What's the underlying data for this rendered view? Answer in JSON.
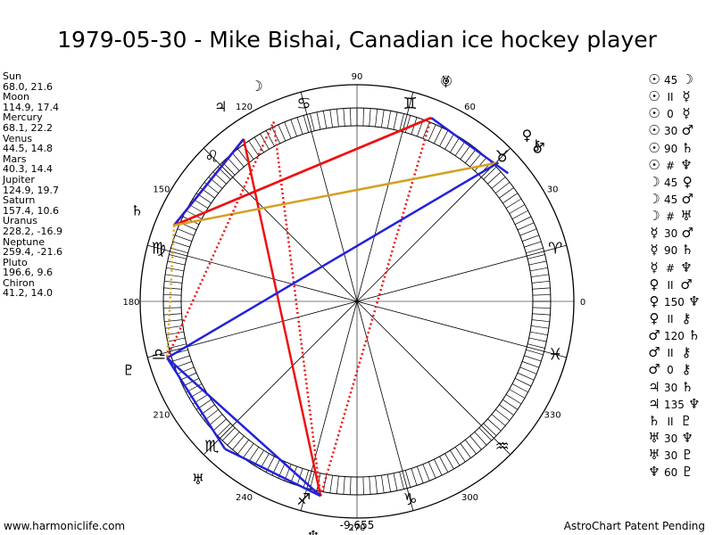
{
  "title": "1979-05-30 - Mike Bishai, Canadian ice hockey player",
  "positions": [
    {
      "name": "Sun",
      "value": "68.0, 21.6"
    },
    {
      "name": "Moon",
      "value": "114.9, 17.4"
    },
    {
      "name": "Mercury",
      "value": "68.1, 22.2"
    },
    {
      "name": "Venus",
      "value": "44.5, 14.8"
    },
    {
      "name": "Mars",
      "value": "40.3, 14.4"
    },
    {
      "name": "Jupiter",
      "value": "124.9, 19.7"
    },
    {
      "name": "Saturn",
      "value": "157.4, 10.6"
    },
    {
      "name": "Uranus",
      "value": "228.2, -16.9"
    },
    {
      "name": "Neptune",
      "value": "259.4, -21.6"
    },
    {
      "name": "Pluto",
      "value": "196.6, 9.6"
    },
    {
      "name": "Chiron",
      "value": "41.2, 14.0"
    }
  ],
  "wheel": {
    "degree_labels": [
      "0",
      "30",
      "60",
      "90",
      "120",
      "150",
      "180",
      "210",
      "240",
      "270",
      "300",
      "330"
    ],
    "zodiac_signs": [
      "♈",
      "♉",
      "♊",
      "♋",
      "♌",
      "♍",
      "♎",
      "♏",
      "♐",
      "♑",
      "♒",
      "♓"
    ],
    "bottom_value": "-9,655",
    "planets": [
      {
        "key": "sun",
        "glyph": "☉",
        "longitude": 68.0
      },
      {
        "key": "moon",
        "glyph": "☽",
        "longitude": 114.9
      },
      {
        "key": "mercury",
        "glyph": "☿",
        "longitude": 68.1
      },
      {
        "key": "venus",
        "glyph": "♀",
        "longitude": 44.5
      },
      {
        "key": "mars",
        "glyph": "♂",
        "longitude": 40.3
      },
      {
        "key": "jupiter",
        "glyph": "♃",
        "longitude": 124.9
      },
      {
        "key": "saturn",
        "glyph": "♄",
        "longitude": 157.4
      },
      {
        "key": "uranus",
        "glyph": "♅",
        "longitude": 228.2
      },
      {
        "key": "neptune",
        "glyph": "♆",
        "longitude": 259.4
      },
      {
        "key": "pluto",
        "glyph": "♇",
        "longitude": 196.6
      },
      {
        "key": "chiron",
        "glyph": "⚷",
        "longitude": 41.2
      }
    ],
    "aspect_lines": [
      {
        "from": "sun",
        "to": "saturn",
        "color": "#ee1111",
        "style": "solid"
      },
      {
        "from": "sun",
        "to": "neptune",
        "color": "#ee1111",
        "style": "dotted"
      },
      {
        "from": "sun",
        "to": "mars",
        "color": "#2222dd",
        "style": "solid"
      },
      {
        "from": "moon",
        "to": "neptune",
        "color": "#ee1111",
        "style": "dotted"
      },
      {
        "from": "jupiter",
        "to": "saturn",
        "color": "#ee1111",
        "style": "solid"
      },
      {
        "from": "jupiter",
        "to": "neptune",
        "color": "#ee1111",
        "style": "solid"
      },
      {
        "from": "jupiter",
        "to": "saturn",
        "color": "#2222dd",
        "style": "solid"
      },
      {
        "from": "mercury",
        "to": "saturn",
        "color": "#ee1111",
        "style": "solid"
      },
      {
        "from": "venus",
        "to": "saturn",
        "color": "#d4a020",
        "style": "solid"
      },
      {
        "from": "venus",
        "to": "pluto",
        "color": "#2222dd",
        "style": "solid"
      },
      {
        "from": "saturn",
        "to": "pluto",
        "color": "#d4a020",
        "style": "dotted"
      },
      {
        "from": "pluto",
        "to": "neptune",
        "color": "#2222dd",
        "style": "solid"
      },
      {
        "from": "pluto",
        "to": "uranus",
        "color": "#2222dd",
        "style": "solid"
      },
      {
        "from": "uranus",
        "to": "neptune",
        "color": "#2222dd",
        "style": "solid"
      },
      {
        "from": "pluto",
        "to": "moon",
        "color": "#ee1111",
        "style": "dotted"
      }
    ]
  },
  "aspects": [
    {
      "p1": "☉",
      "aspect": "45",
      "p2": "☽"
    },
    {
      "p1": "☉",
      "aspect": "II",
      "p2": "☿"
    },
    {
      "p1": "☉",
      "aspect": "0",
      "p2": "☿"
    },
    {
      "p1": "☉",
      "aspect": "30",
      "p2": "♂"
    },
    {
      "p1": "☉",
      "aspect": "90",
      "p2": "♄"
    },
    {
      "p1": "☉",
      "aspect": "#",
      "p2": "♆"
    },
    {
      "p1": "☽",
      "aspect": "45",
      "p2": "♀"
    },
    {
      "p1": "☽",
      "aspect": "45",
      "p2": "♂"
    },
    {
      "p1": "☽",
      "aspect": "#",
      "p2": "♅"
    },
    {
      "p1": "☿",
      "aspect": "30",
      "p2": "♂"
    },
    {
      "p1": "☿",
      "aspect": "90",
      "p2": "♄"
    },
    {
      "p1": "☿",
      "aspect": "#",
      "p2": "♆"
    },
    {
      "p1": "♀",
      "aspect": "II",
      "p2": "♂"
    },
    {
      "p1": "♀",
      "aspect": "150",
      "p2": "♆"
    },
    {
      "p1": "♀",
      "aspect": "II",
      "p2": "⚷"
    },
    {
      "p1": "♂",
      "aspect": "120",
      "p2": "♄"
    },
    {
      "p1": "♂",
      "aspect": "II",
      "p2": "⚷"
    },
    {
      "p1": "♂",
      "aspect": "0",
      "p2": "⚷"
    },
    {
      "p1": "♃",
      "aspect": "30",
      "p2": "♄"
    },
    {
      "p1": "♃",
      "aspect": "135",
      "p2": "♆"
    },
    {
      "p1": "♄",
      "aspect": "II",
      "p2": "♇"
    },
    {
      "p1": "♅",
      "aspect": "30",
      "p2": "♆"
    },
    {
      "p1": "♅",
      "aspect": "30",
      "p2": "♇"
    },
    {
      "p1": "♆",
      "aspect": "60",
      "p2": "♇"
    }
  ],
  "footer": {
    "left": "www.harmoniclife.com",
    "right": "AstroChart Patent Pending"
  }
}
